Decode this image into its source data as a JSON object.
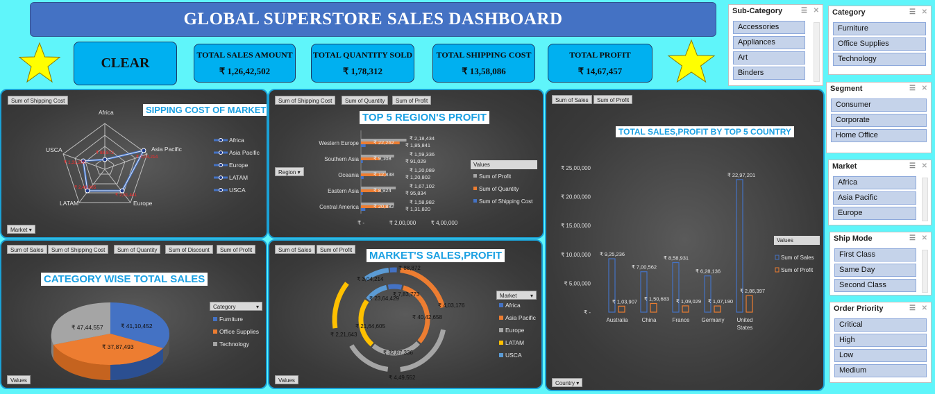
{
  "header": {
    "title": "GLOBAL  SUPERSTORE  SALES DASHBOARD"
  },
  "clear_label": "CLEAR",
  "kpis": [
    {
      "label": "TOTAL SALES AMOUNT",
      "value": "₹ 1,26,42,502"
    },
    {
      "label": "TOTAL QUANTITY SOLD",
      "value": "₹ 1,78,312"
    },
    {
      "label": "TOTAL SHIPPING COST",
      "value": "₹ 13,58,086"
    },
    {
      "label": "TOTAL PROFIT",
      "value": "₹ 14,67,457"
    }
  ],
  "radar": {
    "field": "Sum of Shipping Cost",
    "title": "SIPPING COST OF MARKET",
    "filter": "Market",
    "axes": [
      "Africa",
      "Asia Pacific",
      "Europe",
      "LATAM",
      "USCA"
    ],
    "legend": [
      "Africa",
      "Asia Pacific",
      "Europe",
      "LATAM",
      "USCA"
    ],
    "values": [
      1,
      1,
      1,
      1,
      1
    ]
  },
  "region": {
    "fields": [
      "Sum of Shipping Cost",
      "Sum of Quantity",
      "Sum of Profit"
    ],
    "title": "TOP 5 REGION'S PROFIT",
    "filter": "Region",
    "legend_title": "Values",
    "legend": [
      "Sum of Profit",
      "Sum of Quantity",
      "Sum of Shipping Cost"
    ],
    "xticks": [
      "₹ -",
      "₹ 2,00,000",
      "₹ 4,00,000"
    ],
    "rows": [
      {
        "name": "Western Europe",
        "label_ship": "₹ 22,262",
        "label_profit": "₹ 2,18,434",
        "label_qty": "₹ 1,85,841"
      },
      {
        "name": "Southern Asia",
        "label_ship": "₹ 9,108",
        "label_profit": "₹ 1,59,336",
        "label_qty": "₹ 91,029"
      },
      {
        "name": "Oceania",
        "label_ship": "₹ 12,838",
        "label_profit": "₹ 1,20,089",
        "label_qty": "₹ 1,20,802"
      },
      {
        "name": "Eastern Asia",
        "label_ship": "₹ 8,924",
        "label_profit": "₹ 1,67,102",
        "label_qty": "₹ 95,834"
      },
      {
        "name": "Central America",
        "label_ship": "₹ 20,882",
        "label_profit": "₹ 1,58,982",
        "label_qty": "₹ 1,31,820"
      }
    ]
  },
  "country": {
    "fields": [
      "Sum of Sales",
      "Sum of Profit"
    ],
    "title": "TOTAL SALES,PROFIT BY TOP 5 COUNTRY",
    "filter": "Country",
    "legend_title": "Values",
    "legend": [
      "Sum of Sales",
      "Sum of Profit"
    ],
    "yticks": [
      "₹ 25,00,000",
      "₹ 20,00,000",
      "₹ 15,00,000",
      "₹ 10,00,000",
      "₹ 5,00,000",
      "₹ -"
    ]
  },
  "category": {
    "fields": [
      "Sum of Sales",
      "Sum of Shipping Cost",
      "Sum of Quantity",
      "Sum of Discount",
      "Sum of Profit"
    ],
    "title": "CATEGORY WISE TOTAL SALES",
    "filter": "Category",
    "legend": [
      "Furniture",
      "Office Supplies",
      "Technology"
    ],
    "bottom_label": "Values"
  },
  "market_chart": {
    "fields": [
      "Sum of Sales",
      "Sum of Profit"
    ],
    "title": "MARKET'S SALES,PROFIT",
    "filter": "Market",
    "legend": [
      "Africa",
      "Asia Pacific",
      "Europe",
      "LATAM",
      "USCA"
    ],
    "bottom_label": "Values",
    "outer_labels": [
      "₹ 88,872",
      "₹ 3,04,214",
      "₹ 4,03,176",
      "₹ 2,21,643",
      "₹ 4,49,552"
    ],
    "inner_labels": [
      "₹ 7,83,773",
      "₹ 23,64,429",
      "₹ 40,42,658",
      "₹ 21,64,605",
      "₹ 32,87,336"
    ]
  },
  "chart_data": [
    {
      "type": "bar",
      "title": "TOTAL SALES,PROFIT BY TOP 5 COUNTRY",
      "categories": [
        "Australia",
        "China",
        "France",
        "Germany",
        "United States"
      ],
      "series": [
        {
          "name": "Sum of Sales",
          "values": [
            925236,
            700562,
            858931,
            628136,
            2297201
          ],
          "labels": [
            "₹ 9,25,236",
            "₹ 7,00,562",
            "₹ 8,58,931",
            "₹ 6,28,136",
            "₹ 22,97,201"
          ]
        },
        {
          "name": "Sum of Profit",
          "values": [
            103907,
            150683,
            109029,
            107190,
            286397
          ],
          "labels": [
            "₹ 1,03,907",
            "₹ 1,50,683",
            "₹ 1,09,029",
            "₹ 1,07,190",
            "₹ 2,86,397"
          ]
        }
      ],
      "ylim": [
        0,
        2500000
      ],
      "colors": [
        "#4472c4",
        "#ed7d31"
      ]
    },
    {
      "type": "bar",
      "title": "TOP 5 REGION'S PROFIT",
      "orientation": "horizontal",
      "categories": [
        "Western Europe",
        "Southern Asia",
        "Oceania",
        "Eastern Asia",
        "Central America"
      ],
      "series": [
        {
          "name": "Sum of Profit",
          "values": [
            218434,
            159336,
            120089,
            167102,
            158982
          ]
        },
        {
          "name": "Sum of Quantity",
          "values": [
            185841,
            91029,
            120802,
            95834,
            131820
          ]
        },
        {
          "name": "Sum of Shipping Cost",
          "values": [
            22262,
            9108,
            12838,
            8924,
            20882
          ]
        }
      ],
      "xlim": [
        0,
        400000
      ],
      "colors": [
        "#a5a5a5",
        "#ed7d31",
        "#4472c4"
      ]
    },
    {
      "type": "pie",
      "title": "CATEGORY WISE TOTAL SALES",
      "categories": [
        "Furniture",
        "Office Supplies",
        "Technology"
      ],
      "values": [
        4110452,
        3787493,
        4744557
      ],
      "labels": [
        "₹ 41,10,452",
        "₹ 37,87,493",
        "₹ 47,44,557"
      ],
      "colors": [
        "#4472c4",
        "#ed7d31",
        "#a5a5a5"
      ]
    }
  ],
  "slicers": {
    "subcategory": {
      "title": "Sub-Category",
      "items": [
        "Accessories",
        "Appliances",
        "Art",
        "Binders"
      ]
    },
    "category": {
      "title": "Category",
      "items": [
        "Furniture",
        "Office Supplies",
        "Technology"
      ]
    },
    "segment": {
      "title": "Segment",
      "items": [
        "Consumer",
        "Corporate",
        "Home Office"
      ]
    },
    "market": {
      "title": "Market",
      "items": [
        "Africa",
        "Asia Pacific",
        "Europe"
      ]
    },
    "shipmode": {
      "title": "Ship Mode",
      "items": [
        "First Class",
        "Same Day",
        "Second Class"
      ]
    },
    "priority": {
      "title": "Order Priority",
      "items": [
        "Critical",
        "High",
        "Low",
        "Medium"
      ]
    }
  }
}
